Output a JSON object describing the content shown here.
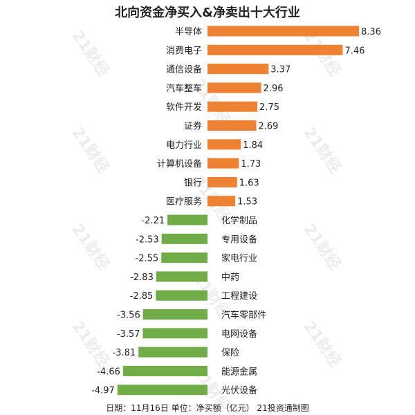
{
  "watermark": "21财经",
  "footer": "日期：11月16日 单位：净买额（亿元） 21投资通制图",
  "chart_data": {
    "type": "bar",
    "orientation": "horizontal",
    "title": "北向资金净买入&净卖出十大行业",
    "categories": [
      "半导体",
      "消费电子",
      "通信设备",
      "汽车整车",
      "软件开发",
      "证券",
      "电力行业",
      "计算机设备",
      "银行",
      "医疗服务",
      "化学制品",
      "专用设备",
      "家电行业",
      "中药",
      "工程建设",
      "汽车零部件",
      "电网设备",
      "保险",
      "能源金属",
      "光伏设备"
    ],
    "values": [
      8.36,
      7.46,
      3.37,
      2.96,
      2.75,
      2.69,
      1.84,
      1.73,
      1.63,
      1.53,
      -2.21,
      -2.53,
      -2.55,
      -2.83,
      -2.85,
      -3.56,
      -3.57,
      -3.81,
      -4.66,
      -4.97
    ],
    "value_labels": [
      "8.36",
      "7.46",
      "3.37",
      "2.96",
      "2.75",
      "2.69",
      "1.84",
      "1.73",
      "1.63",
      "1.53",
      "-2.21",
      "-2.53",
      "-2.55",
      "-2.83",
      "-2.85",
      "-3.56",
      "-3.57",
      "-3.81",
      "-4.66",
      "-4.97"
    ],
    "colors": {
      "positive": "#ee8232",
      "negative": "#71ad47"
    },
    "xlim": [
      -5,
      8.7
    ],
    "grid": false,
    "legend": "none"
  }
}
